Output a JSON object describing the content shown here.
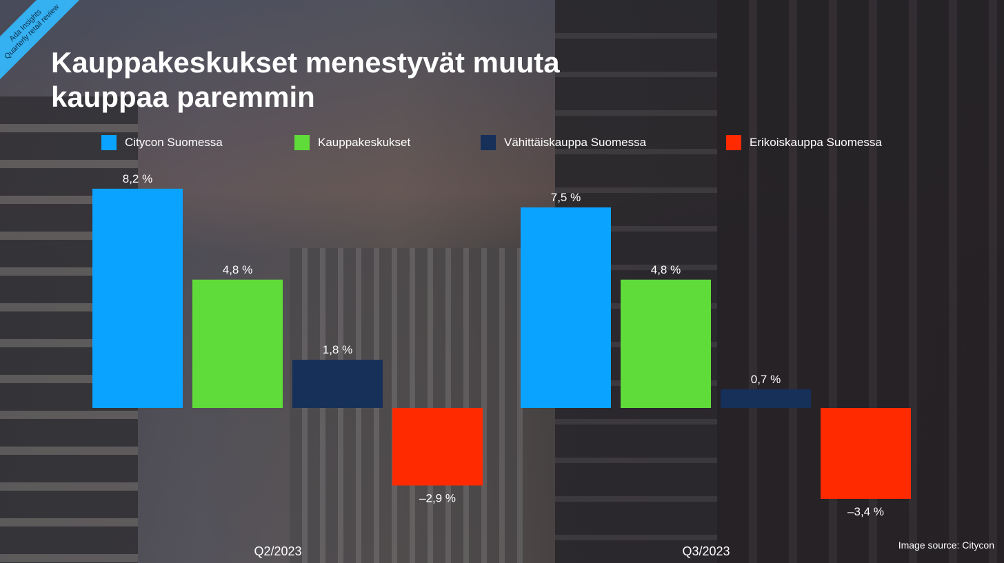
{
  "corner_badge": {
    "line1": "Ada Insights",
    "line2": "Quarterly retail review",
    "color": "#35b0f0"
  },
  "title": "Kauppakeskukset menestyvät muuta kauppaa paremmin",
  "source": "Image source: Citycon",
  "chart_data": {
    "type": "bar",
    "categories": [
      "Q2/2023",
      "Q3/2023"
    ],
    "series": [
      {
        "name": "Citycon Suomessa",
        "color": "#0aa3ff",
        "values": [
          8.2,
          7.5
        ],
        "labels": [
          "8,2 %",
          "7,5 %"
        ]
      },
      {
        "name": "Kauppakeskukset",
        "color": "#5fdc3a",
        "values": [
          4.8,
          4.8
        ],
        "labels": [
          "4,8 %",
          "4,8 %"
        ]
      },
      {
        "name": "Vähittäiskauppa Suomessa",
        "color": "#16305a",
        "values": [
          1.8,
          0.7
        ],
        "labels": [
          "1,8 %",
          "0,7 %"
        ]
      },
      {
        "name": "Erikoiskauppa Suomessa",
        "color": "#ff2a00",
        "values": [
          -2.9,
          -3.4
        ],
        "labels": [
          "–2,9 %",
          "–3,4 %"
        ]
      }
    ],
    "title": "Kauppakeskukset menestyvät muuta kauppaa paremmin",
    "xlabel": "",
    "ylabel": "",
    "ylim": [
      -4,
      9
    ],
    "grid": false,
    "legend_position": "top"
  }
}
